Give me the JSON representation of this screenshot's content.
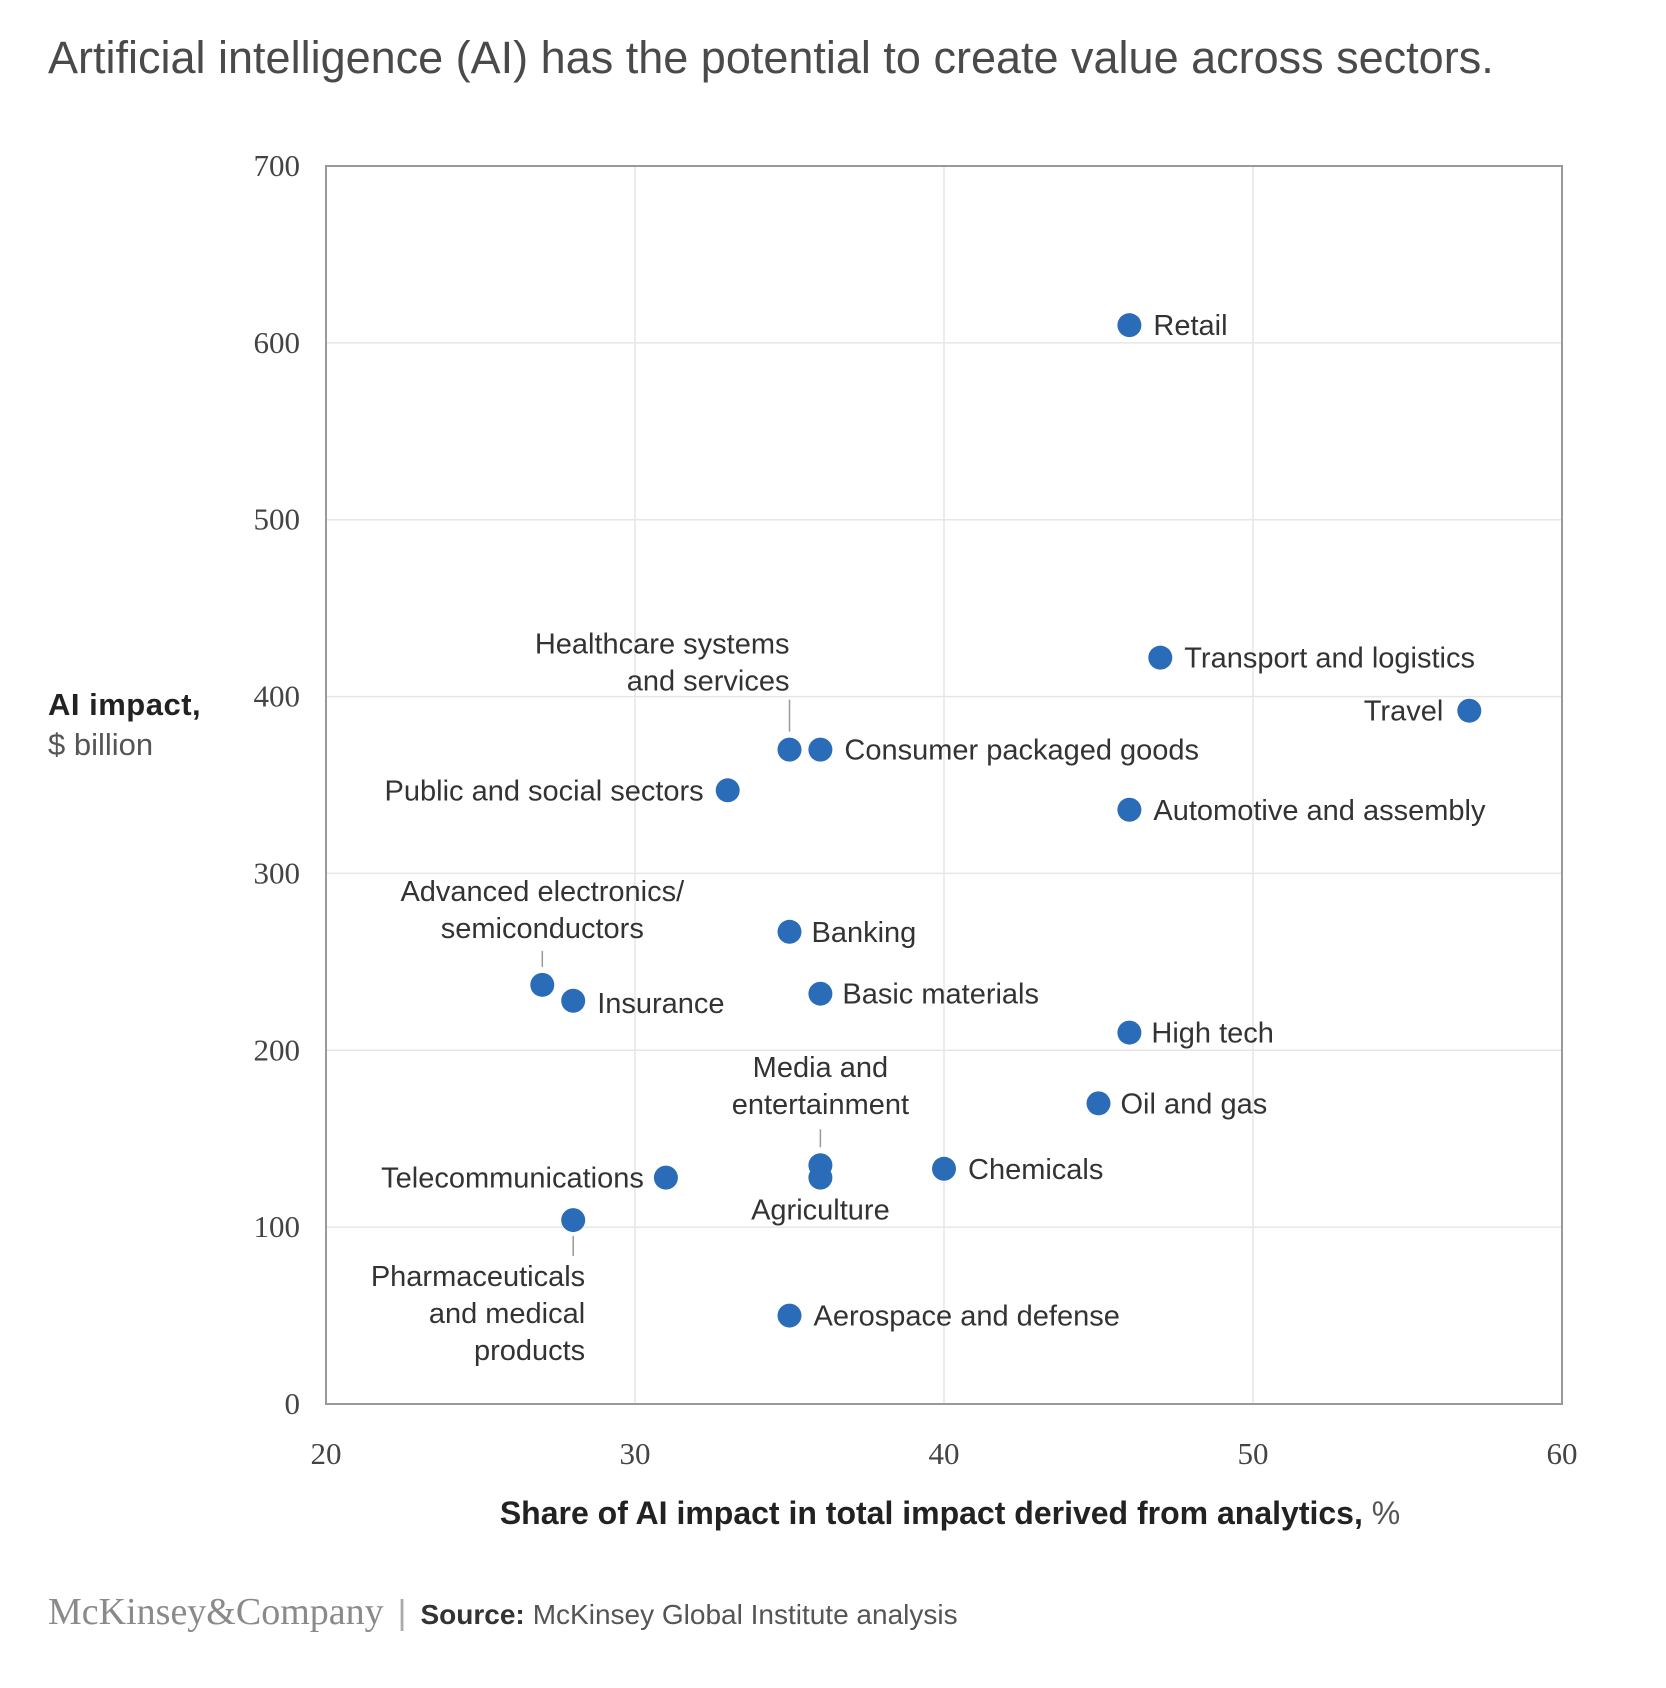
{
  "title": "Artificial intelligence (AI) has the potential to create value across sectors.",
  "footer": {
    "brand": "McKinsey&Company",
    "source_label": "Source:",
    "source_text": "McKinsey Global Institute analysis"
  },
  "colors": {
    "point": "#2b6cb8",
    "grid": "#e6e6e6",
    "frame": "#999999"
  },
  "chart_data": {
    "type": "scatter",
    "title": "Artificial intelligence (AI) has the potential to create value across sectors.",
    "xlabel": "Share of AI impact in total impact derived from analytics,",
    "xlabel_unit": "%",
    "ylabel": "AI impact,",
    "ylabel_unit": "$ billion",
    "xlim": [
      20,
      60
    ],
    "ylim": [
      0,
      700
    ],
    "x_ticks": [
      "20",
      "30",
      "40",
      "50",
      "60"
    ],
    "y_ticks": [
      "0",
      "100",
      "200",
      "300",
      "400",
      "500",
      "600",
      "700"
    ],
    "grid": true,
    "points": [
      {
        "label": "Retail",
        "x": 46,
        "y": 610
      },
      {
        "label": "Transport and logistics",
        "x": 47,
        "y": 422
      },
      {
        "label": "Travel",
        "x": 57,
        "y": 392
      },
      {
        "label": "Healthcare systems and services",
        "x": 35,
        "y": 370
      },
      {
        "label": "Consumer packaged goods",
        "x": 36,
        "y": 370
      },
      {
        "label": "Public and social sectors",
        "x": 33,
        "y": 347
      },
      {
        "label": "Automotive and assembly",
        "x": 46,
        "y": 336
      },
      {
        "label": "Banking",
        "x": 35,
        "y": 267
      },
      {
        "label": "Advanced electronics/ semiconductors",
        "x": 27,
        "y": 237
      },
      {
        "label": "Insurance",
        "x": 28,
        "y": 228
      },
      {
        "label": "Basic materials",
        "x": 36,
        "y": 232
      },
      {
        "label": "High tech",
        "x": 46,
        "y": 210
      },
      {
        "label": "Oil and gas",
        "x": 45,
        "y": 170
      },
      {
        "label": "Media and entertainment",
        "x": 36,
        "y": 135
      },
      {
        "label": "Agriculture",
        "x": 36,
        "y": 128
      },
      {
        "label": "Chemicals",
        "x": 40,
        "y": 133
      },
      {
        "label": "Telecommunications",
        "x": 31,
        "y": 128
      },
      {
        "label": "Pharmaceuticals and medical products",
        "x": 28,
        "y": 104
      },
      {
        "label": "Aerospace and defense",
        "x": 35,
        "y": 50
      }
    ]
  }
}
